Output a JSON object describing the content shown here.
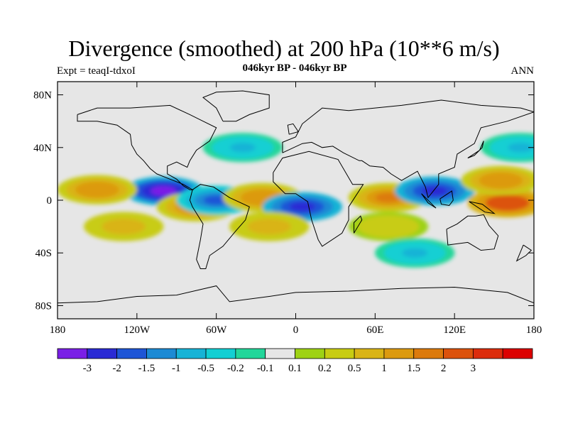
{
  "title": "Divergence (smoothed) at 200 hPa (10**6 m/s)",
  "subtitle": "046kyr BP - 046kyr BP",
  "left_label": "Expt = teaqI-tdxoI",
  "right_label": "ANN",
  "axes": {
    "lon_range": [
      -180,
      180
    ],
    "lat_range": [
      -90,
      90
    ],
    "x_ticks": [
      {
        "value": -180,
        "label": "180"
      },
      {
        "value": -120,
        "label": "120W"
      },
      {
        "value": -60,
        "label": "60W"
      },
      {
        "value": 0,
        "label": "0"
      },
      {
        "value": 60,
        "label": "60E"
      },
      {
        "value": 120,
        "label": "120E"
      },
      {
        "value": 180,
        "label": "180"
      }
    ],
    "y_ticks": [
      {
        "value": 80,
        "label": "80N"
      },
      {
        "value": 40,
        "label": "40N"
      },
      {
        "value": 0,
        "label": "0"
      },
      {
        "value": -40,
        "label": "40S"
      },
      {
        "value": -80,
        "label": "80S"
      }
    ]
  },
  "colorbar": {
    "colors": [
      "#7a1fe6",
      "#2a2ad4",
      "#1e55d6",
      "#1c8ad4",
      "#17b3d6",
      "#12cfd3",
      "#22d69a",
      "#e6e6e6",
      "#9ed214",
      "#c8cc12",
      "#d9b416",
      "#dc9a10",
      "#dc7a0c",
      "#dc520c",
      "#dc2c0c",
      "#dc0000"
    ],
    "labels": [
      "-3",
      "-2",
      "-1.5",
      "-1",
      "-0.5",
      "-0.2",
      "-0.1",
      "0.1",
      "0.2",
      "0.5",
      "1",
      "1.5",
      "2",
      "3"
    ]
  },
  "chart_data": {
    "type": "heatmap",
    "field": "Divergence (smoothed) at 200 hPa",
    "units": "10**6 m/s",
    "levels": [
      -3,
      -2,
      -1.5,
      -1,
      -0.5,
      -0.2,
      -0.1,
      0.1,
      0.2,
      0.5,
      1,
      1.5,
      2,
      3
    ],
    "features": [
      {
        "name": "central-pacific-convergence",
        "lon": -100,
        "lat": 7,
        "value": -3
      },
      {
        "name": "east-pacific-divergence",
        "lon": -150,
        "lat": 8,
        "value": 1.5
      },
      {
        "name": "south-america-divergence",
        "lon": -75,
        "lat": -5,
        "value": 1.5
      },
      {
        "name": "equatorial-atlantic-convergence",
        "lon": -60,
        "lat": 0,
        "value": -1.5
      },
      {
        "name": "atlantic-divergence",
        "lon": -25,
        "lat": 2,
        "value": 1.5
      },
      {
        "name": "africa-convergence",
        "lon": 5,
        "lat": -5,
        "value": -2
      },
      {
        "name": "indian-ocean-divergence",
        "lon": 70,
        "lat": 2,
        "value": 2
      },
      {
        "name": "maritime-continent-convergence",
        "lon": 105,
        "lat": 7,
        "value": -2
      },
      {
        "name": "west-pacific-divergence",
        "lon": 160,
        "lat": -2,
        "value": 3
      },
      {
        "name": "north-pacific-divergence",
        "lon": 155,
        "lat": 15,
        "value": 1.5
      },
      {
        "name": "south-pacific-divergence",
        "lon": -130,
        "lat": -20,
        "value": 1
      },
      {
        "name": "south-atlantic-divergence",
        "lon": -20,
        "lat": -20,
        "value": 1
      },
      {
        "name": "south-indian-divergence",
        "lon": 70,
        "lat": -20,
        "value": 0.5
      },
      {
        "name": "south-indian-convergence",
        "lon": 90,
        "lat": -40,
        "value": -0.5
      },
      {
        "name": "north-atlantic-convergence",
        "lon": -40,
        "lat": 40,
        "value": -0.5
      },
      {
        "name": "north-pacific-convergence",
        "lon": 170,
        "lat": 40,
        "value": -0.5
      }
    ]
  }
}
